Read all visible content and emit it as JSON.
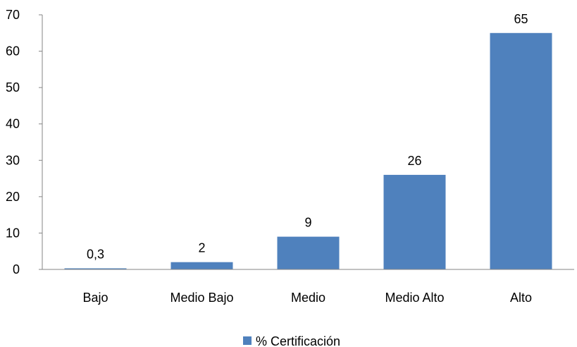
{
  "chart_data": {
    "type": "bar",
    "categories": [
      "Bajo",
      "Medio Bajo",
      "Medio",
      "Medio Alto",
      "Alto"
    ],
    "series": [
      {
        "name": "% Certificación",
        "values": [
          0.3,
          2,
          9,
          26,
          65
        ],
        "data_labels": [
          "0,3",
          "2",
          "9",
          "26",
          "65"
        ],
        "color": "#4F81BD"
      }
    ],
    "ylim": [
      0,
      70
    ],
    "yticks": [
      0,
      10,
      20,
      30,
      40,
      50,
      60,
      70
    ],
    "grid": false,
    "legend_position": "bottom",
    "axis_color": "#868686"
  }
}
